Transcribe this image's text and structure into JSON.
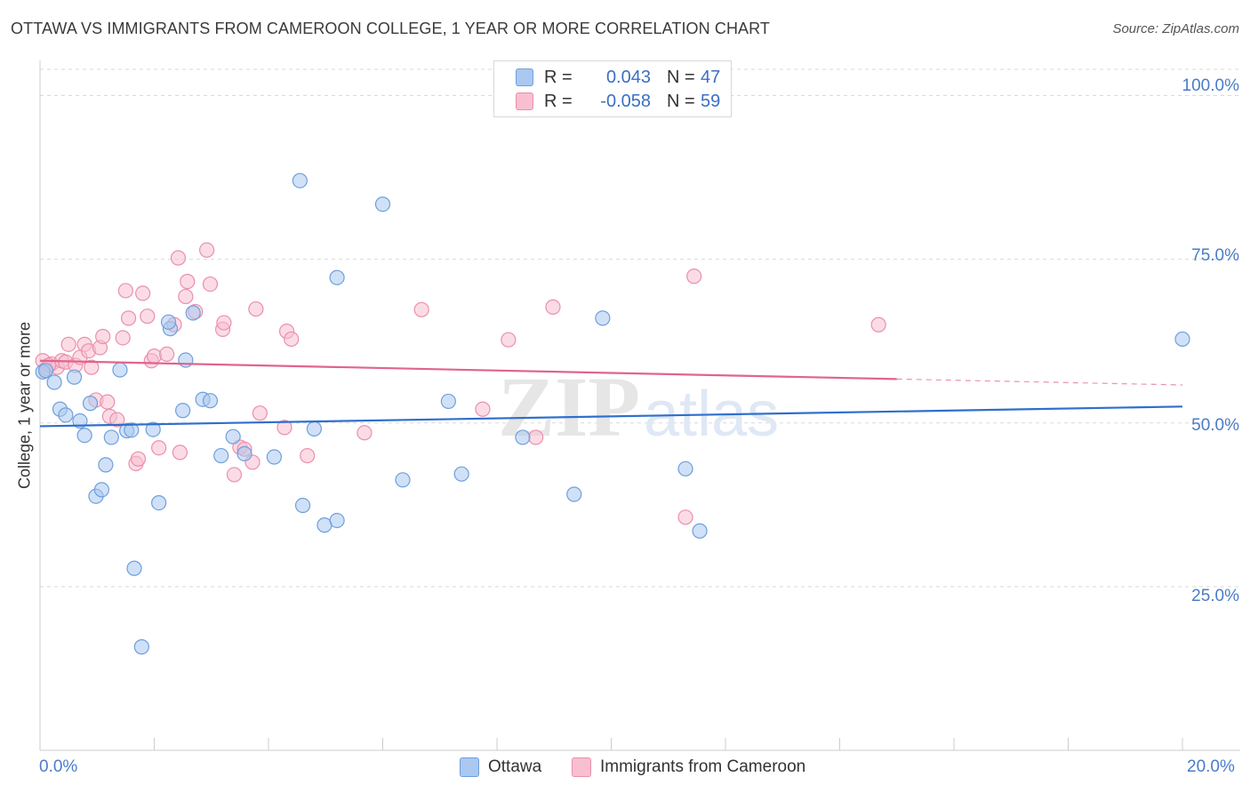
{
  "header": {
    "title": "OTTAWA VS IMMIGRANTS FROM CAMEROON COLLEGE, 1 YEAR OR MORE CORRELATION CHART",
    "source": "Source: ZipAtlas.com"
  },
  "colors": {
    "ottawa_fill": "#aac8f0",
    "ottawa_stroke": "#6e9fdc",
    "ottawa_line": "#2f6fcc",
    "cameroon_fill": "#f7bfd0",
    "cameroon_stroke": "#ea8fae",
    "cameroon_line": "#e0648f",
    "grid": "#d9d9d9",
    "tick_text": "#4a7cc9"
  },
  "legend": {
    "rows": [
      {
        "r_label": "R =",
        "r_value": "0.043",
        "n_label": "N =",
        "n_value": "47"
      },
      {
        "r_label": "R =",
        "r_value": "-0.058",
        "n_label": "N =",
        "n_value": "59"
      }
    ]
  },
  "watermark": {
    "zip": "ZIP",
    "atlas": "atlas"
  },
  "chart_data": {
    "type": "scatter",
    "title": "OTTAWA VS IMMIGRANTS FROM CAMEROON COLLEGE, 1 YEAR OR MORE CORRELATION CHART",
    "xlabel": "",
    "ylabel": "College, 1 year or more",
    "xlim": [
      0,
      20
    ],
    "ylim": [
      0,
      104
    ],
    "x_tick_labels": {
      "left": "0.0%",
      "right": "20.0%"
    },
    "y_tick_labels": [
      "25.0%",
      "50.0%",
      "75.0%",
      "100.0%"
    ],
    "y_ticks": [
      25,
      50,
      75,
      100
    ],
    "grid": true,
    "legend_position": "top-center",
    "series": [
      {
        "name": "Ottawa",
        "trend": {
          "x0": 0,
          "y0": 49.5,
          "x1": 20,
          "y1": 52.5
        },
        "points": [
          [
            0.05,
            57.8
          ],
          [
            0.25,
            56.2
          ],
          [
            0.35,
            52.1
          ],
          [
            0.45,
            51.2
          ],
          [
            0.6,
            57.0
          ],
          [
            0.7,
            50.3
          ],
          [
            0.78,
            48.1
          ],
          [
            0.88,
            53.0
          ],
          [
            0.98,
            38.8
          ],
          [
            1.08,
            39.8
          ],
          [
            1.15,
            43.6
          ],
          [
            1.25,
            47.8
          ],
          [
            1.4,
            58.1
          ],
          [
            1.52,
            48.8
          ],
          [
            1.6,
            48.9
          ],
          [
            1.65,
            27.8
          ],
          [
            1.78,
            15.8
          ],
          [
            1.98,
            49.0
          ],
          [
            2.08,
            37.8
          ],
          [
            2.28,
            64.4
          ],
          [
            2.25,
            65.4
          ],
          [
            2.5,
            51.9
          ],
          [
            2.55,
            59.6
          ],
          [
            2.68,
            66.8
          ],
          [
            2.85,
            53.6
          ],
          [
            2.98,
            53.4
          ],
          [
            3.17,
            45.0
          ],
          [
            3.38,
            47.9
          ],
          [
            3.58,
            45.3
          ],
          [
            4.1,
            44.8
          ],
          [
            4.55,
            87.0
          ],
          [
            4.6,
            37.4
          ],
          [
            4.8,
            49.1
          ],
          [
            4.98,
            34.4
          ],
          [
            5.2,
            35.1
          ],
          [
            5.2,
            72.2
          ],
          [
            6.0,
            83.4
          ],
          [
            6.35,
            41.3
          ],
          [
            7.15,
            53.3
          ],
          [
            7.38,
            42.2
          ],
          [
            8.45,
            47.8
          ],
          [
            9.35,
            39.1
          ],
          [
            9.85,
            66.0
          ],
          [
            11.3,
            43.0
          ],
          [
            11.55,
            33.5
          ],
          [
            20.0,
            62.8
          ],
          [
            0.1,
            58.0
          ]
        ]
      },
      {
        "name": "Immigrants from Cameroon",
        "trend": {
          "x0": 0,
          "y0": 59.5,
          "x1": 15,
          "y1": 56.7
        },
        "trend_dashed": {
          "x0": 15,
          "y0": 56.7,
          "x1": 20,
          "y1": 55.8
        },
        "points": [
          [
            0.05,
            59.5
          ],
          [
            0.12,
            58.3
          ],
          [
            0.2,
            59.0
          ],
          [
            0.3,
            58.5
          ],
          [
            0.38,
            59.5
          ],
          [
            0.45,
            59.3
          ],
          [
            0.5,
            62.0
          ],
          [
            0.62,
            58.8
          ],
          [
            0.7,
            60.0
          ],
          [
            0.78,
            62.0
          ],
          [
            0.85,
            61.0
          ],
          [
            0.9,
            58.5
          ],
          [
            0.98,
            53.5
          ],
          [
            1.05,
            61.5
          ],
          [
            1.1,
            63.2
          ],
          [
            1.18,
            53.2
          ],
          [
            1.22,
            51.0
          ],
          [
            1.35,
            50.5
          ],
          [
            1.45,
            63.0
          ],
          [
            1.5,
            70.2
          ],
          [
            1.55,
            66.0
          ],
          [
            1.68,
            43.8
          ],
          [
            1.72,
            44.5
          ],
          [
            1.8,
            69.8
          ],
          [
            1.88,
            66.3
          ],
          [
            1.95,
            59.5
          ],
          [
            2.0,
            60.2
          ],
          [
            2.08,
            46.2
          ],
          [
            2.22,
            60.5
          ],
          [
            2.35,
            65.0
          ],
          [
            2.42,
            75.2
          ],
          [
            2.45,
            45.5
          ],
          [
            2.55,
            69.3
          ],
          [
            2.58,
            71.6
          ],
          [
            2.72,
            67.0
          ],
          [
            2.92,
            76.4
          ],
          [
            2.98,
            71.2
          ],
          [
            3.2,
            64.3
          ],
          [
            3.22,
            65.3
          ],
          [
            3.4,
            42.1
          ],
          [
            3.5,
            46.3
          ],
          [
            3.58,
            46.0
          ],
          [
            3.72,
            44.0
          ],
          [
            3.78,
            67.4
          ],
          [
            3.85,
            51.5
          ],
          [
            4.28,
            49.3
          ],
          [
            4.32,
            64.0
          ],
          [
            4.4,
            62.8
          ],
          [
            4.68,
            45.0
          ],
          [
            5.68,
            48.5
          ],
          [
            6.68,
            67.3
          ],
          [
            7.75,
            52.1
          ],
          [
            8.2,
            62.7
          ],
          [
            8.68,
            47.8
          ],
          [
            8.98,
            67.7
          ],
          [
            11.3,
            35.6
          ],
          [
            11.45,
            72.4
          ],
          [
            14.68,
            65.0
          ],
          [
            0.15,
            58.8
          ]
        ]
      }
    ]
  },
  "axis": {
    "ylabel": "College, 1 year or more",
    "x_left": "0.0%",
    "x_right": "20.0%",
    "y100": "100.0%",
    "y75": "75.0%",
    "y50": "50.0%",
    "y25": "25.0%"
  },
  "bottom_legend": {
    "ottawa": "Ottawa",
    "cameroon": "Immigrants from Cameroon"
  }
}
